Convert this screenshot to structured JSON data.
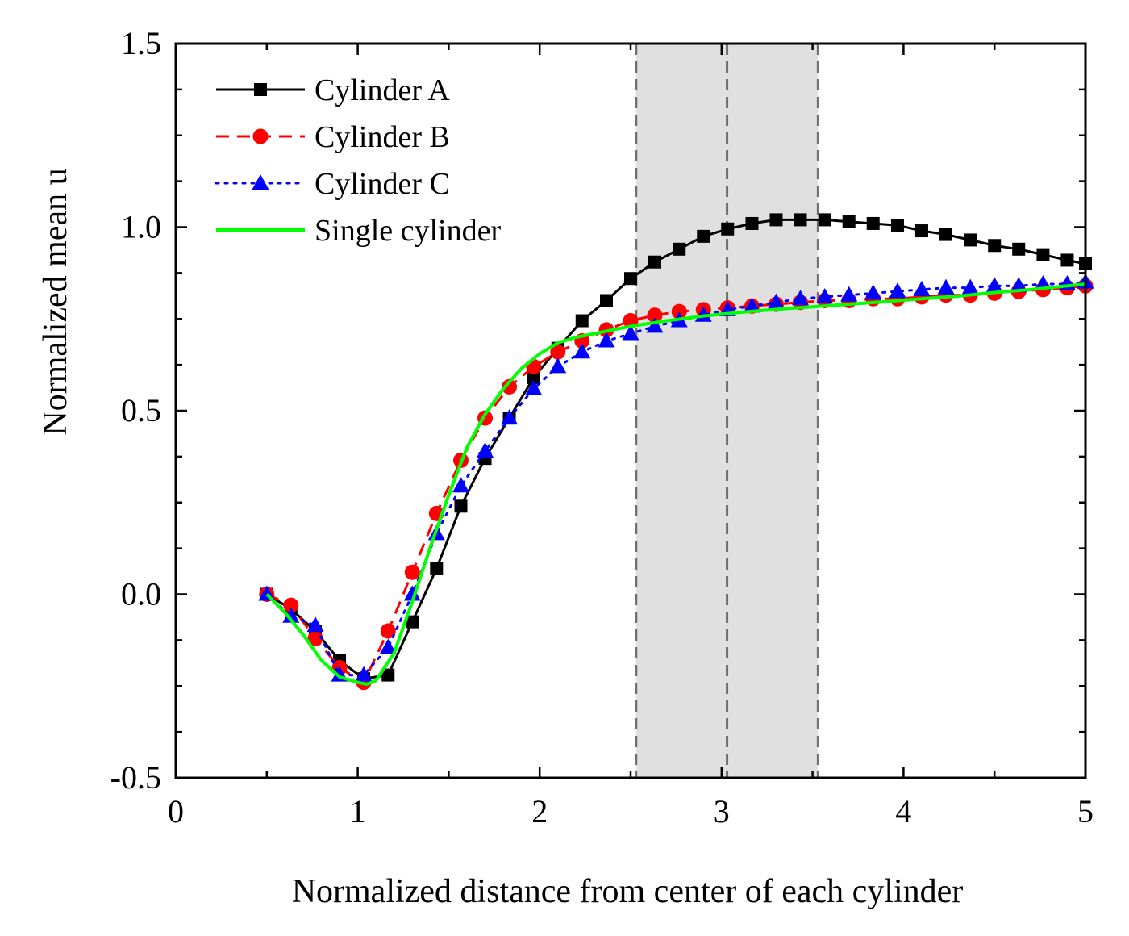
{
  "chart_data": {
    "type": "line",
    "title": "",
    "xlabel": "Normalized distance from center of each cylinder",
    "ylabel": "Normalized mean u",
    "xlim": [
      0,
      5
    ],
    "ylim": [
      -0.5,
      1.5
    ],
    "xticks": [
      0,
      1,
      2,
      3,
      4,
      5
    ],
    "xtick_labels": [
      "0",
      "1",
      "2",
      "3",
      "4",
      "5"
    ],
    "yticks": [
      -0.5,
      0.0,
      0.5,
      1.0,
      1.5
    ],
    "ytick_labels": [
      "-0.5",
      "0.0",
      "0.5",
      "1.0",
      "1.5"
    ],
    "grid": false,
    "legend_position": "top-left",
    "shaded_region": {
      "x_start": 2.53,
      "x_end": 3.53,
      "color": "#e0e0e0"
    },
    "vlines": [
      2.53,
      3.03,
      3.53
    ],
    "series": [
      {
        "name": "Cylinder A",
        "color": "#000000",
        "line": "solid",
        "marker": "square",
        "x": [
          0.5,
          0.633,
          0.767,
          0.9,
          1.033,
          1.167,
          1.3,
          1.433,
          1.567,
          1.7,
          1.833,
          1.967,
          2.1,
          2.233,
          2.367,
          2.5,
          2.633,
          2.767,
          2.9,
          3.033,
          3.167,
          3.3,
          3.433,
          3.567,
          3.7,
          3.833,
          3.967,
          4.1,
          4.233,
          4.367,
          4.5,
          4.633,
          4.767,
          4.9,
          5.0
        ],
        "values": [
          0.0,
          -0.04,
          -0.1,
          -0.18,
          -0.23,
          -0.22,
          -0.075,
          0.07,
          0.24,
          0.37,
          0.48,
          0.59,
          0.67,
          0.745,
          0.8,
          0.86,
          0.905,
          0.94,
          0.975,
          0.995,
          1.01,
          1.02,
          1.02,
          1.02,
          1.015,
          1.01,
          1.005,
          0.99,
          0.98,
          0.965,
          0.95,
          0.94,
          0.925,
          0.91,
          0.9
        ]
      },
      {
        "name": "Cylinder B",
        "color": "#ff0000",
        "line": "dashed",
        "marker": "circle",
        "x": [
          0.5,
          0.633,
          0.767,
          0.9,
          1.033,
          1.167,
          1.3,
          1.433,
          1.567,
          1.7,
          1.833,
          1.967,
          2.1,
          2.233,
          2.367,
          2.5,
          2.633,
          2.767,
          2.9,
          3.033,
          3.167,
          3.3,
          3.433,
          3.567,
          3.7,
          3.833,
          3.967,
          4.1,
          4.233,
          4.367,
          4.5,
          4.633,
          4.767,
          4.9,
          5.0
        ],
        "values": [
          0.0,
          -0.03,
          -0.12,
          -0.2,
          -0.24,
          -0.1,
          0.06,
          0.22,
          0.365,
          0.48,
          0.565,
          0.62,
          0.66,
          0.69,
          0.72,
          0.745,
          0.76,
          0.77,
          0.775,
          0.78,
          0.785,
          0.79,
          0.795,
          0.8,
          0.8,
          0.805,
          0.805,
          0.81,
          0.815,
          0.815,
          0.82,
          0.825,
          0.83,
          0.835,
          0.84
        ]
      },
      {
        "name": "Cylinder C",
        "color": "#0000ff",
        "line": "dotted",
        "marker": "triangle",
        "x": [
          0.5,
          0.633,
          0.767,
          0.9,
          1.033,
          1.167,
          1.3,
          1.433,
          1.567,
          1.7,
          1.833,
          1.967,
          2.1,
          2.233,
          2.367,
          2.5,
          2.633,
          2.767,
          2.9,
          3.033,
          3.167,
          3.3,
          3.433,
          3.567,
          3.7,
          3.833,
          3.967,
          4.1,
          4.233,
          4.367,
          4.5,
          4.633,
          4.767,
          4.9,
          5.0
        ],
        "values": [
          0.0,
          -0.06,
          -0.085,
          -0.22,
          -0.22,
          -0.145,
          0.0,
          0.165,
          0.295,
          0.39,
          0.48,
          0.56,
          0.62,
          0.66,
          0.69,
          0.71,
          0.73,
          0.745,
          0.76,
          0.775,
          0.785,
          0.795,
          0.805,
          0.81,
          0.815,
          0.82,
          0.825,
          0.83,
          0.835,
          0.835,
          0.84,
          0.84,
          0.845,
          0.845,
          0.85
        ]
      },
      {
        "name": "Single cylinder",
        "color": "#00ff00",
        "line": "solid",
        "marker": "none",
        "x": [
          0.5,
          0.6,
          0.7,
          0.8,
          0.9,
          1.0,
          1.05,
          1.1,
          1.2,
          1.3,
          1.4,
          1.5,
          1.6,
          1.7,
          1.8,
          1.9,
          2.0,
          2.1,
          2.2,
          2.3,
          2.4,
          2.5,
          2.7,
          2.9,
          3.1,
          3.3,
          3.5,
          3.7,
          3.9,
          4.1,
          4.3,
          4.5,
          4.7,
          5.0
        ],
        "values": [
          0.0,
          -0.05,
          -0.11,
          -0.18,
          -0.225,
          -0.24,
          -0.245,
          -0.235,
          -0.16,
          -0.02,
          0.13,
          0.27,
          0.4,
          0.49,
          0.56,
          0.615,
          0.655,
          0.685,
          0.7,
          0.71,
          0.72,
          0.73,
          0.745,
          0.758,
          0.768,
          0.776,
          0.783,
          0.79,
          0.797,
          0.805,
          0.812,
          0.822,
          0.83,
          0.845
        ]
      }
    ]
  }
}
